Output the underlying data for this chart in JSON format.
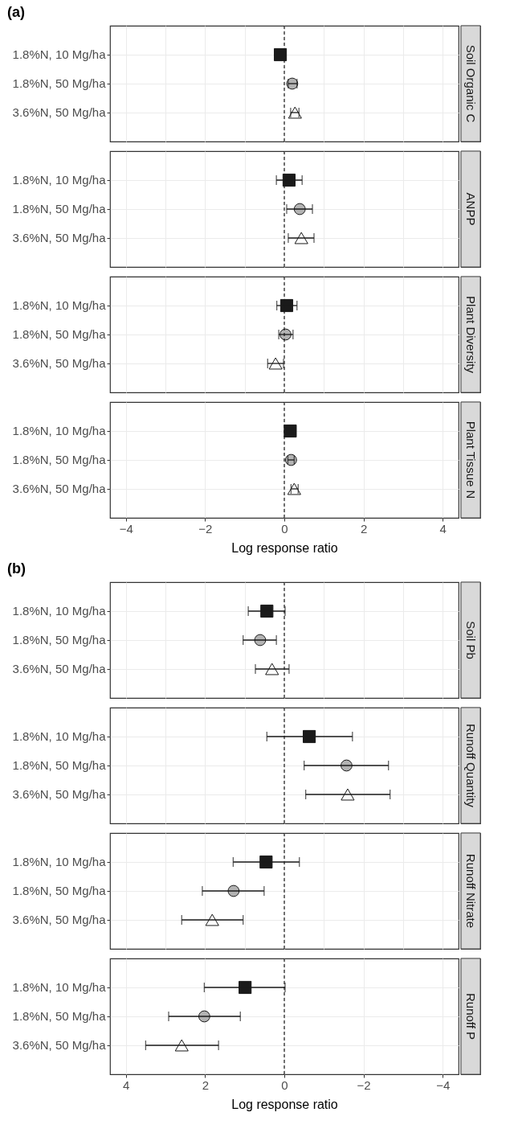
{
  "chart_data": [
    {
      "type": "scatter",
      "title": "Soil Organic C",
      "orientation": "horizontal",
      "annotations": [
        "(a)"
      ],
      "tick_labels": "y",
      "grid": true,
      "categories": [
        "1.8%N, 10 Mg/ha",
        "1.8%N, 50 Mg/ha",
        "3.6%N, 50 Mg/ha"
      ],
      "xlim": [
        -4.4,
        4.4
      ],
      "ref_lines": [
        {
          "axis": "x",
          "value": 0,
          "line_style": "dashed"
        }
      ],
      "series": [
        {
          "marker": "square",
          "color": "#1a1a1a",
          "values": [
            -0.1,
            null,
            null
          ],
          "errors": [
            null,
            null,
            null
          ]
        },
        {
          "marker": "circle",
          "color": "#b3b3b3",
          "values": [
            null,
            0.2,
            null
          ],
          "errors": [
            null,
            [
              0.1,
              0.32
            ],
            null
          ]
        },
        {
          "marker": "triangle",
          "color": "#ffffff",
          "values": [
            null,
            null,
            0.27
          ],
          "errors": [
            null,
            null,
            [
              0.16,
              0.37
            ]
          ]
        }
      ]
    },
    {
      "type": "scatter",
      "title": "ANPP",
      "orientation": "horizontal",
      "tick_labels": "y",
      "grid": true,
      "categories": [
        "1.8%N, 10 Mg/ha",
        "1.8%N, 50 Mg/ha",
        "3.6%N, 50 Mg/ha"
      ],
      "xlim": [
        -4.4,
        4.4
      ],
      "ref_lines": [
        {
          "axis": "x",
          "value": 0,
          "line_style": "dashed"
        }
      ],
      "series": [
        {
          "marker": "square",
          "color": "#1a1a1a",
          "values": [
            0.12,
            null,
            null
          ],
          "errors": [
            [
              -0.2,
              0.45
            ],
            null,
            null
          ]
        },
        {
          "marker": "circle",
          "color": "#b3b3b3",
          "values": [
            null,
            0.39,
            null
          ],
          "errors": [
            null,
            [
              0.06,
              0.71
            ],
            null
          ]
        },
        {
          "marker": "triangle",
          "color": "#ffffff",
          "values": [
            null,
            null,
            0.43
          ],
          "errors": [
            null,
            null,
            [
              0.1,
              0.75
            ]
          ]
        }
      ]
    },
    {
      "type": "scatter",
      "title": "Plant Diversity",
      "orientation": "horizontal",
      "tick_labels": "y",
      "grid": true,
      "categories": [
        "1.8%N, 10 Mg/ha",
        "1.8%N, 50 Mg/ha",
        "3.6%N, 50 Mg/ha"
      ],
      "xlim": [
        -4.4,
        4.4
      ],
      "ref_lines": [
        {
          "axis": "x",
          "value": 0,
          "line_style": "dashed"
        }
      ],
      "series": [
        {
          "marker": "square",
          "color": "#1a1a1a",
          "values": [
            0.06,
            null,
            null
          ],
          "errors": [
            [
              -0.19,
              0.32
            ],
            null,
            null
          ]
        },
        {
          "marker": "circle",
          "color": "#b3b3b3",
          "values": [
            null,
            0.03,
            null
          ],
          "errors": [
            null,
            [
              -0.14,
              0.22
            ],
            null
          ]
        },
        {
          "marker": "triangle",
          "color": "#ffffff",
          "values": [
            null,
            null,
            -0.22
          ],
          "errors": [
            null,
            null,
            [
              -0.42,
              -0.02
            ]
          ]
        }
      ]
    },
    {
      "type": "scatter",
      "title": "Plant Tissue N",
      "orientation": "horizontal",
      "grid": true,
      "xlabel": "Log response ratio",
      "categories": [
        "1.8%N, 10 Mg/ha",
        "1.8%N, 50 Mg/ha",
        "3.6%N, 50 Mg/ha"
      ],
      "xlim": [
        -4.4,
        4.4
      ],
      "xticks": [
        -4,
        -2,
        0,
        2,
        4
      ],
      "ref_lines": [
        {
          "axis": "x",
          "value": 0,
          "line_style": "dashed"
        }
      ],
      "series": [
        {
          "marker": "square",
          "color": "#1a1a1a",
          "values": [
            0.15,
            null,
            null
          ],
          "errors": [
            null,
            null,
            null
          ]
        },
        {
          "marker": "circle",
          "color": "#b3b3b3",
          "values": [
            null,
            0.17,
            null
          ],
          "errors": [
            null,
            [
              0.09,
              0.25
            ],
            null
          ]
        },
        {
          "marker": "triangle",
          "color": "#ffffff",
          "values": [
            null,
            null,
            0.25
          ],
          "errors": [
            null,
            null,
            [
              0.17,
              0.35
            ]
          ]
        }
      ]
    },
    {
      "type": "scatter",
      "title": "Soil Pb",
      "orientation": "horizontal",
      "annotations": [
        "(b)"
      ],
      "tick_labels": "y",
      "grid": true,
      "categories": [
        "1.8%N, 10 Mg/ha",
        "1.8%N, 50 Mg/ha",
        "3.6%N, 50 Mg/ha"
      ],
      "xlim": [
        4.4,
        -4.4
      ],
      "ref_lines": [
        {
          "axis": "x",
          "value": 0,
          "line_style": "dashed"
        }
      ],
      "series": [
        {
          "marker": "square",
          "color": "#1a1a1a",
          "values": [
            0.44,
            null,
            null
          ],
          "errors": [
            [
              -0.02,
              0.91
            ],
            null,
            null
          ]
        },
        {
          "marker": "circle",
          "color": "#b3b3b3",
          "values": [
            null,
            0.61,
            null
          ],
          "errors": [
            null,
            [
              0.2,
              1.04
            ],
            null
          ]
        },
        {
          "marker": "triangle",
          "color": "#ffffff",
          "values": [
            null,
            null,
            0.31
          ],
          "errors": [
            null,
            null,
            [
              -0.12,
              0.73
            ]
          ]
        }
      ]
    },
    {
      "type": "scatter",
      "title": "Runoff Quantity",
      "orientation": "horizontal",
      "tick_labels": "y",
      "grid": true,
      "categories": [
        "1.8%N, 10 Mg/ha",
        "1.8%N, 50 Mg/ha",
        "3.6%N, 50 Mg/ha"
      ],
      "xlim": [
        4.4,
        -4.4
      ],
      "ref_lines": [
        {
          "axis": "x",
          "value": 0,
          "line_style": "dashed"
        }
      ],
      "series": [
        {
          "marker": "square",
          "color": "#1a1a1a",
          "values": [
            -0.63,
            null,
            null
          ],
          "errors": [
            [
              -1.72,
              0.44
            ],
            null,
            null
          ]
        },
        {
          "marker": "circle",
          "color": "#b3b3b3",
          "values": [
            null,
            -1.57,
            null
          ],
          "errors": [
            null,
            [
              -2.63,
              -0.5
            ],
            null
          ]
        },
        {
          "marker": "triangle",
          "color": "#ffffff",
          "values": [
            null,
            null,
            -1.6
          ],
          "errors": [
            null,
            null,
            [
              -2.67,
              -0.54
            ]
          ]
        }
      ]
    },
    {
      "type": "scatter",
      "title": "Runoff Nitrate",
      "orientation": "horizontal",
      "tick_labels": "y",
      "grid": true,
      "categories": [
        "1.8%N, 10 Mg/ha",
        "1.8%N, 50 Mg/ha",
        "3.6%N, 50 Mg/ha"
      ],
      "xlim": [
        4.4,
        -4.4
      ],
      "ref_lines": [
        {
          "axis": "x",
          "value": 0,
          "line_style": "dashed"
        }
      ],
      "series": [
        {
          "marker": "square",
          "color": "#1a1a1a",
          "values": [
            0.46,
            null,
            null
          ],
          "errors": [
            [
              -0.38,
              1.29
            ],
            null,
            null
          ]
        },
        {
          "marker": "circle",
          "color": "#b3b3b3",
          "values": [
            null,
            1.28,
            null
          ],
          "errors": [
            null,
            [
              0.51,
              2.07
            ],
            null
          ]
        },
        {
          "marker": "triangle",
          "color": "#ffffff",
          "values": [
            null,
            null,
            1.82
          ],
          "errors": [
            null,
            null,
            [
              1.04,
              2.59
            ]
          ]
        }
      ]
    },
    {
      "type": "scatter",
      "title": "Runoff P",
      "orientation": "horizontal",
      "grid": true,
      "xlabel": "Log response ratio",
      "categories": [
        "1.8%N, 10 Mg/ha",
        "1.8%N, 50 Mg/ha",
        "3.6%N, 50 Mg/ha"
      ],
      "xlim": [
        4.4,
        -4.4
      ],
      "xticks": [
        4,
        2,
        0,
        -2,
        -4
      ],
      "ref_lines": [
        {
          "axis": "x",
          "value": 0,
          "line_style": "dashed"
        }
      ],
      "series": [
        {
          "marker": "square",
          "color": "#1a1a1a",
          "values": [
            0.99,
            null,
            null
          ],
          "errors": [
            [
              -0.02,
              2.02
            ],
            null,
            null
          ]
        },
        {
          "marker": "circle",
          "color": "#b3b3b3",
          "values": [
            null,
            2.02,
            null
          ],
          "errors": [
            null,
            [
              1.11,
              2.92
            ],
            null
          ]
        },
        {
          "marker": "triangle",
          "color": "#ffffff",
          "values": [
            null,
            null,
            2.59
          ],
          "errors": [
            null,
            null,
            [
              1.66,
              3.5
            ]
          ]
        }
      ]
    }
  ]
}
